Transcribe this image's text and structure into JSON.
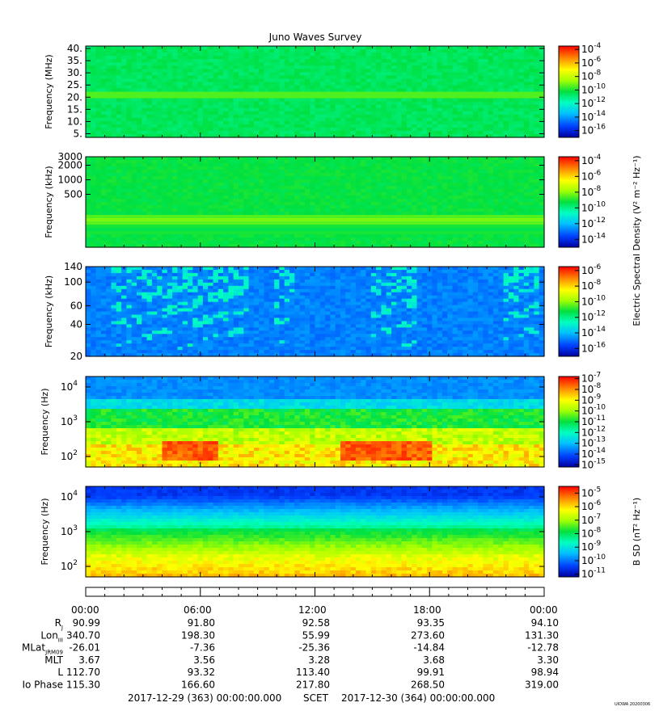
{
  "title": "Juno Waves Survey",
  "chart_data": [
    {
      "type": "heatmap",
      "ylabel": "Frequency (MHz)",
      "yticks": [
        "5.",
        "10.",
        "15.",
        "20.",
        "25.",
        "30.",
        "35.",
        "40."
      ],
      "yscale": "linear",
      "ylim": [
        3.5,
        41
      ],
      "colorbar_ticks": [
        "-4",
        "-6",
        "-8",
        "-10",
        "-12",
        "-14",
        "-16"
      ],
      "colorbar_range": [
        -17,
        -3.5
      ],
      "colorbar_label": "",
      "features": [
        {
          "type": "band",
          "y": 21,
          "value": -10.5
        }
      ]
    },
    {
      "type": "heatmap",
      "ylabel": "Frequency (kHz)",
      "yticks": [
        "3000",
        "2000",
        "1000",
        "500"
      ],
      "yscale": "log",
      "ylim": [
        40,
        3000
      ],
      "colorbar_ticks": [
        "-4",
        "-6",
        "-8",
        "-10",
        "-12",
        "-14"
      ],
      "colorbar_range": [
        -15,
        -3.5
      ],
      "colorbar_label": "Electric Spectral Density (V² m⁻² Hz⁻¹)",
      "features": [
        {
          "type": "band",
          "y": 200,
          "value": -10.5
        }
      ]
    },
    {
      "type": "heatmap",
      "ylabel": "Frequency (kHz)",
      "yticks": [
        "140",
        "100",
        "60",
        "40",
        "20"
      ],
      "yscale": "log",
      "ylim": [
        20,
        140
      ],
      "colorbar_ticks": [
        "-6",
        "-8",
        "-10",
        "-12",
        "-14",
        "-16"
      ],
      "colorbar_range": [
        -17,
        -5.5
      ],
      "colorbar_label": ""
    },
    {
      "type": "heatmap",
      "ylabel": "Frequency (Hz)",
      "yticks": [
        "4",
        "3",
        "2"
      ],
      "yscale": "log",
      "ylim": [
        50,
        20000
      ],
      "colorbar_ticks": [
        "-7",
        "-8",
        "-9",
        "-10",
        "-11",
        "-12",
        "-13",
        "-14",
        "-15"
      ],
      "colorbar_range": [
        -15.2,
        -6.8
      ],
      "colorbar_label": ""
    },
    {
      "type": "heatmap",
      "ylabel": "Frequency (Hz)",
      "yticks": [
        "4",
        "3",
        "2"
      ],
      "yscale": "log",
      "ylim": [
        50,
        20000
      ],
      "colorbar_ticks": [
        "-5",
        "-6",
        "-7",
        "-8",
        "-9",
        "-10",
        "-11"
      ],
      "colorbar_range": [
        -11.2,
        -4.5
      ],
      "colorbar_label": "B SD (nT² Hz⁻¹)"
    }
  ],
  "time_axis": {
    "ticks": [
      "00:00",
      "06:00",
      "12:00",
      "18:00",
      "00:00"
    ],
    "rows": [
      {
        "label": "R",
        "sub": "J",
        "values": [
          "90.99",
          "91.80",
          "92.58",
          "93.35",
          "94.10"
        ]
      },
      {
        "label": "Lon",
        "sub": "III",
        "values": [
          "340.70",
          "198.30",
          "55.99",
          "273.60",
          "131.30"
        ]
      },
      {
        "label": "MLat",
        "sub": "JRM09",
        "values": [
          "-26.01",
          "-7.36",
          "-25.36",
          "-14.84",
          "-12.78"
        ]
      },
      {
        "label": "MLT",
        "sub": "",
        "values": [
          "3.67",
          "3.56",
          "3.28",
          "3.68",
          "3.30"
        ]
      },
      {
        "label": "L",
        "sub": "",
        "values": [
          "112.70",
          "93.32",
          "113.40",
          "99.91",
          "98.94"
        ]
      },
      {
        "label": "Io Phase",
        "sub": "",
        "values": [
          "115.30",
          "166.60",
          "217.80",
          "268.50",
          "319.00"
        ]
      }
    ],
    "start_time": "2017-12-29 (363) 00:00:00.000",
    "scet": "SCET",
    "end_time": "2017-12-30 (364) 00:00:00.000"
  },
  "stamp": "UIOWA 20200306"
}
